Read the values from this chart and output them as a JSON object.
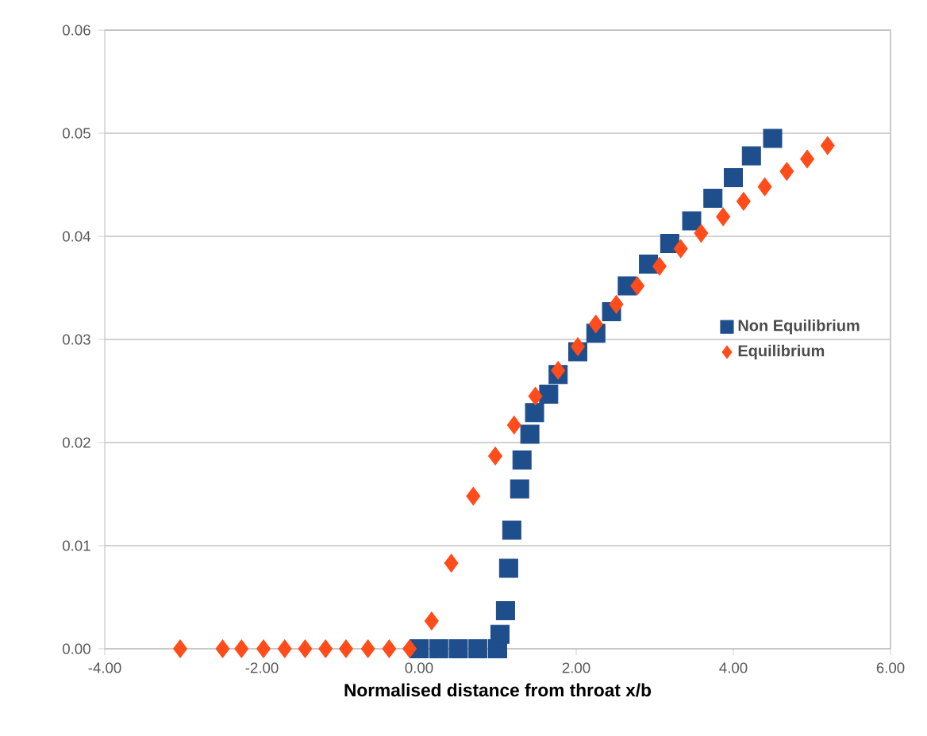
{
  "chart_data": {
    "type": "scatter",
    "xlabel": "Normalised distance from throat x/b",
    "xlim": [
      -4,
      6
    ],
    "ylim": [
      0,
      0.06
    ],
    "xticks": [
      {
        "value": -4,
        "label": "-4.00"
      },
      {
        "value": -2,
        "label": "-2.00"
      },
      {
        "value": 0,
        "label": "0.00"
      },
      {
        "value": 2,
        "label": "2.00"
      },
      {
        "value": 4,
        "label": "4.00"
      },
      {
        "value": 6,
        "label": "6.00"
      }
    ],
    "yticks": [
      {
        "value": 0,
        "label": "0.00"
      },
      {
        "value": 0.01,
        "label": "0.01"
      },
      {
        "value": 0.02,
        "label": "0.02"
      },
      {
        "value": 0.03,
        "label": "0.03"
      },
      {
        "value": 0.04,
        "label": "0.04"
      },
      {
        "value": 0.05,
        "label": "0.05"
      },
      {
        "value": 0.06,
        "label": "0.06"
      }
    ],
    "grid": "y",
    "legend": "right",
    "series": [
      {
        "name": "Non Equilibrium",
        "color": "#1f4e8c",
        "marker": "square",
        "x": [
          0.0,
          0.25,
          0.5,
          0.75,
          1.0,
          1.03,
          1.1,
          1.14,
          1.18,
          1.28,
          1.31,
          1.41,
          1.47,
          1.65,
          1.77,
          2.02,
          2.25,
          2.45,
          2.65,
          2.92,
          3.19,
          3.47,
          3.74,
          4.0,
          4.23,
          4.5
        ],
        "values": [
          0,
          0,
          0,
          0,
          0,
          0.0014,
          0.0037,
          0.0078,
          0.0115,
          0.0155,
          0.0183,
          0.0208,
          0.0229,
          0.0247,
          0.0266,
          0.0288,
          0.0306,
          0.0327,
          0.0352,
          0.0373,
          0.0393,
          0.0415,
          0.0437,
          0.0457,
          0.0478,
          0.0495
        ]
      },
      {
        "name": "Equilibrium",
        "color": "#ff4c1a",
        "marker": "diamond",
        "x": [
          -3.04,
          -2.5,
          -2.26,
          -1.98,
          -1.71,
          -1.45,
          -1.19,
          -0.93,
          -0.65,
          -0.38,
          -0.12,
          0.16,
          0.41,
          0.69,
          0.97,
          1.21,
          1.48,
          1.77,
          2.02,
          2.25,
          2.51,
          2.78,
          3.06,
          3.33,
          3.59,
          3.87,
          4.13,
          4.4,
          4.68,
          4.94,
          5.2
        ],
        "values": [
          0,
          0,
          0,
          0,
          0,
          0,
          0,
          0,
          0,
          0,
          0,
          0.0027,
          0.0083,
          0.0148,
          0.0187,
          0.0217,
          0.0245,
          0.027,
          0.0293,
          0.0315,
          0.0334,
          0.0352,
          0.0371,
          0.0388,
          0.0403,
          0.0419,
          0.0434,
          0.0448,
          0.0463,
          0.0475,
          0.0488
        ]
      }
    ]
  }
}
